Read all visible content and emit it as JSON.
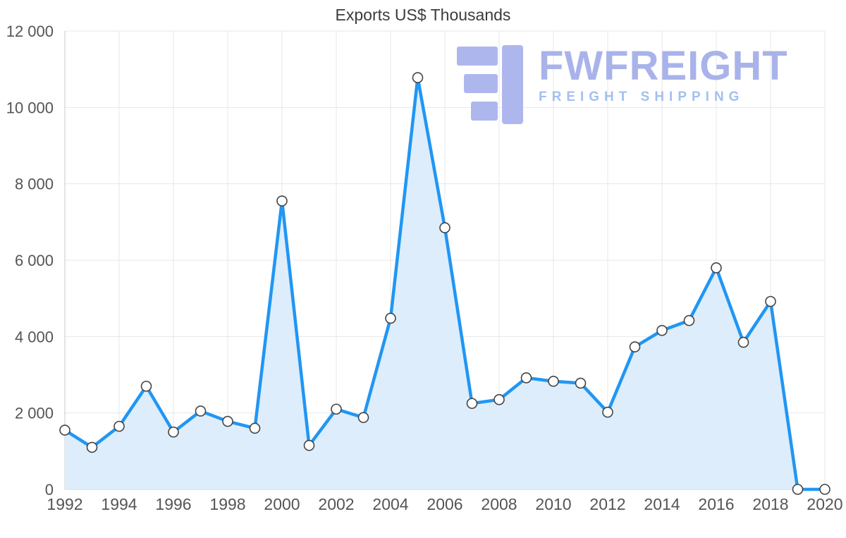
{
  "chart_data": {
    "type": "area",
    "title": "Exports US$ Thousands",
    "xlabel": "",
    "ylabel": "",
    "x": [
      1992,
      1993,
      1994,
      1995,
      1996,
      1997,
      1998,
      1999,
      2000,
      2001,
      2002,
      2003,
      2004,
      2005,
      2006,
      2007,
      2008,
      2009,
      2010,
      2011,
      2012,
      2013,
      2014,
      2015,
      2016,
      2017,
      2018,
      2019,
      2020
    ],
    "values": [
      1550,
      1100,
      1650,
      2700,
      1500,
      2050,
      1780,
      1600,
      7550,
      1150,
      2100,
      1880,
      4480,
      10780,
      6850,
      2250,
      2350,
      2920,
      2830,
      2780,
      2020,
      3730,
      4160,
      4420,
      5800,
      3850,
      4920,
      0,
      0
    ],
    "xticks": [
      1992,
      1994,
      1996,
      1998,
      2000,
      2002,
      2004,
      2006,
      2008,
      2010,
      2012,
      2014,
      2016,
      2018,
      2020
    ],
    "yticks": [
      0,
      2000,
      4000,
      6000,
      8000,
      10000,
      12000
    ],
    "ytick_labels": [
      "0",
      "2 000",
      "4 000",
      "6 000",
      "8 000",
      "10 000",
      "12 000"
    ],
    "xlim": [
      1992,
      2020
    ],
    "ylim": [
      0,
      12000
    ],
    "grid": true,
    "legend_position": "none",
    "colors": {
      "line": "#2196f3",
      "area_fill": "#ddedfb",
      "marker_fill": "#ffffff",
      "marker_stroke": "#444444",
      "gridline": "#e7e7e7",
      "axis": "#c9c9c9",
      "tick_text": "#555555"
    }
  },
  "watermark": {
    "brand": "FWFREIGHT",
    "tagline": "FREIGHT SHIPPING",
    "colors": {
      "glyph": "#aeb7ed",
      "brand": "#a9b3ea",
      "tagline": "#a2c0f0"
    }
  }
}
